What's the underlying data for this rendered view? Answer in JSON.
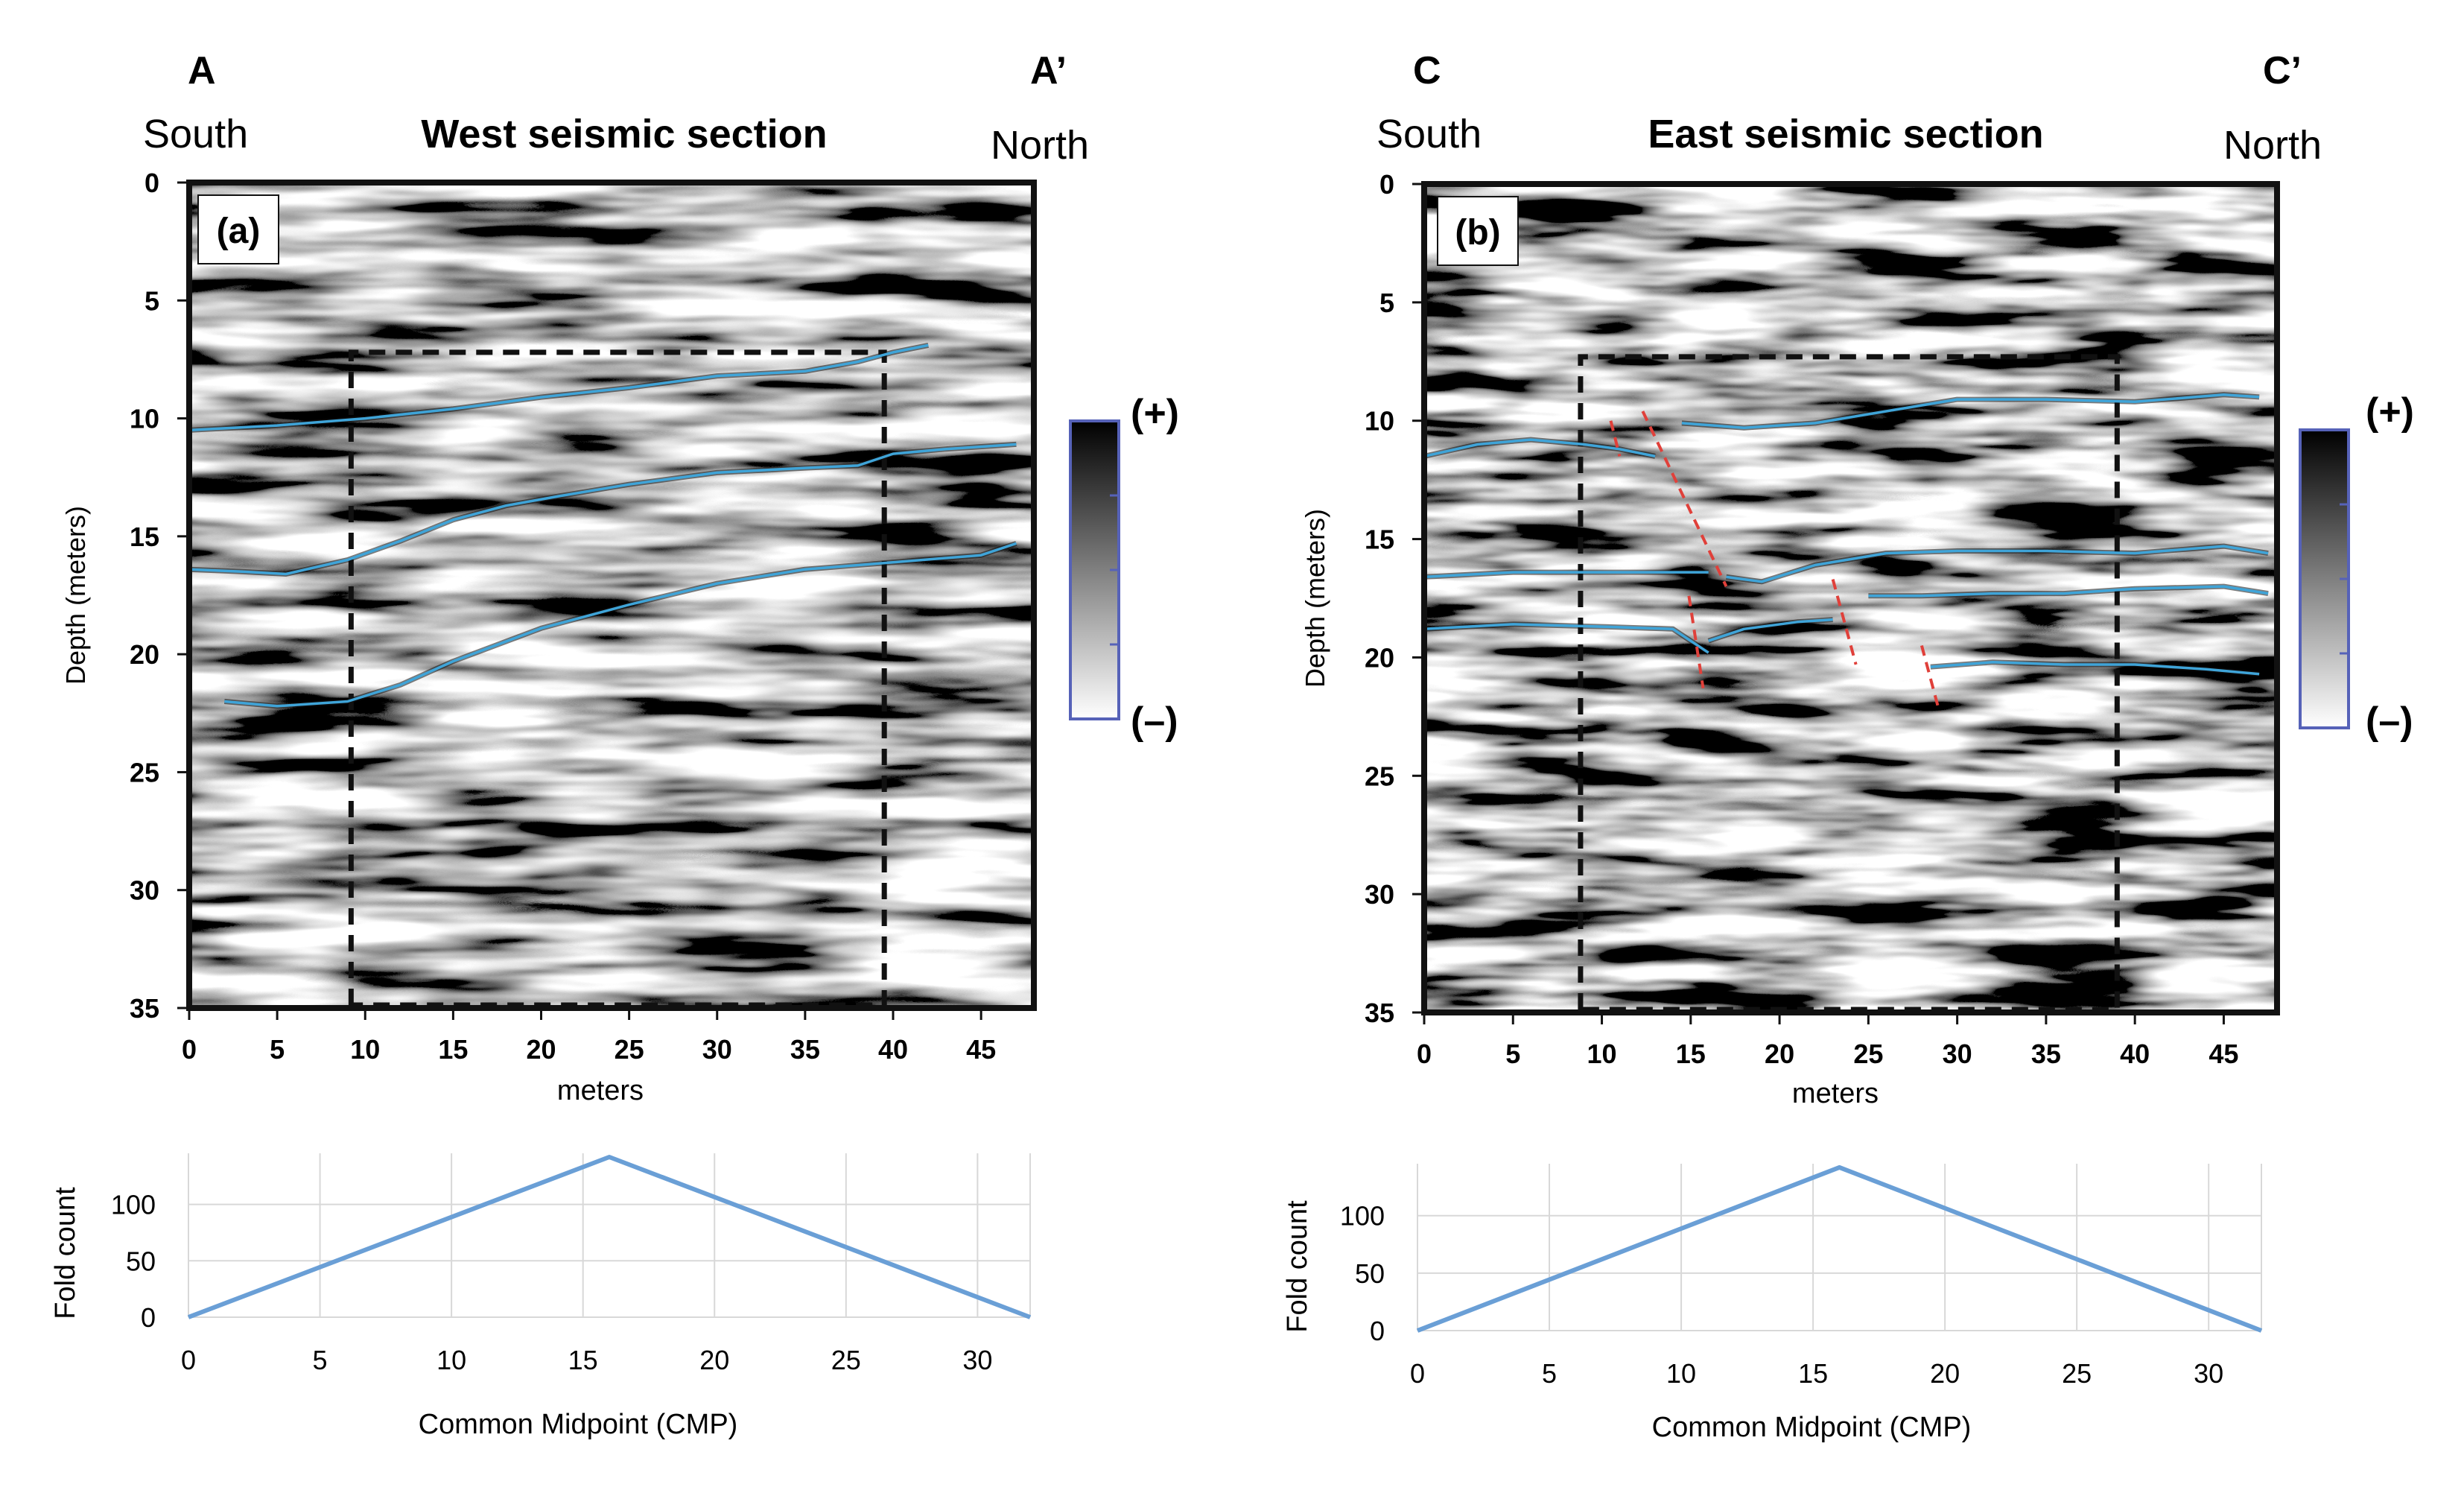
{
  "chart_data": [
    {
      "type": "heatmap",
      "panel_label": "(a)",
      "title": "West seismic section",
      "start_letter": "A",
      "end_letter": "A’",
      "start_direction": "South",
      "end_direction": "North",
      "xlabel": "meters",
      "ylabel": "Depth (meters)",
      "xlim": [
        0,
        48
      ],
      "ylim": [
        35,
        0
      ],
      "xticks": [
        0,
        5,
        10,
        15,
        20,
        25,
        30,
        35,
        40,
        45
      ],
      "yticks": [
        0,
        5,
        10,
        15,
        20,
        25,
        30,
        35
      ],
      "colorbar_labels": [
        "(+)",
        "(–)"
      ],
      "box": {
        "x": [
          9.2,
          39.5
        ],
        "y": [
          7.2,
          35
        ]
      },
      "horizons": [
        {
          "name": "horizon-1",
          "x": [
            0,
            5,
            10,
            15,
            20,
            25,
            30,
            35,
            38,
            40,
            42
          ],
          "depth": [
            10.5,
            10.3,
            10.0,
            9.6,
            9.1,
            8.7,
            8.2,
            8.0,
            7.6,
            7.2,
            6.9
          ]
        },
        {
          "name": "horizon-2",
          "x": [
            0,
            3,
            5.5,
            9,
            12,
            15,
            18,
            21,
            25,
            30,
            35,
            38,
            40,
            43,
            47
          ],
          "depth": [
            16.4,
            16.5,
            16.6,
            16.0,
            15.2,
            14.3,
            13.7,
            13.3,
            12.8,
            12.3,
            12.1,
            12.0,
            11.5,
            11.3,
            11.1
          ]
        },
        {
          "name": "horizon-3",
          "x": [
            2,
            5,
            9,
            12,
            15,
            20,
            25,
            30,
            35,
            40,
            45,
            47
          ],
          "depth": [
            22.0,
            22.2,
            22.0,
            21.3,
            20.3,
            18.9,
            17.9,
            17.0,
            16.4,
            16.1,
            15.8,
            15.3
          ]
        }
      ],
      "faults": []
    },
    {
      "type": "heatmap",
      "panel_label": "(b)",
      "title": "East seismic section",
      "start_letter": "C",
      "end_letter": "C’",
      "start_direction": "South",
      "end_direction": "North",
      "xlabel": "meters",
      "ylabel": "Depth (meters)",
      "xlim": [
        0,
        48
      ],
      "ylim": [
        35,
        0
      ],
      "xticks": [
        0,
        5,
        10,
        15,
        20,
        25,
        30,
        35,
        40,
        45
      ],
      "yticks": [
        0,
        5,
        10,
        15,
        20,
        25,
        30,
        35
      ],
      "colorbar_labels": [
        "(+)",
        "(–)"
      ],
      "box": {
        "x": [
          8.8,
          39.0
        ],
        "y": [
          7.3,
          35
        ]
      },
      "horizons": [
        {
          "name": "horizon-1a",
          "x": [
            0,
            3,
            6,
            9,
            11,
            13
          ],
          "depth": [
            11.5,
            11.0,
            10.8,
            11.0,
            11.2,
            11.5
          ]
        },
        {
          "name": "horizon-1b",
          "x": [
            14.5,
            18,
            22,
            26,
            30,
            35,
            40,
            45,
            47
          ],
          "depth": [
            10.1,
            10.3,
            10.1,
            9.6,
            9.1,
            9.1,
            9.2,
            8.9,
            9.0
          ]
        },
        {
          "name": "horizon-2a",
          "x": [
            0,
            5,
            10,
            16
          ],
          "depth": [
            16.6,
            16.4,
            16.4,
            16.4
          ]
        },
        {
          "name": "horizon-2b",
          "x": [
            17,
            19,
            22,
            26,
            30,
            35,
            40,
            45,
            47.5
          ],
          "depth": [
            16.6,
            16.8,
            16.1,
            15.6,
            15.5,
            15.5,
            15.6,
            15.3,
            15.6
          ]
        },
        {
          "name": "horizon-3a",
          "x": [
            0,
            5,
            10,
            14,
            16
          ],
          "depth": [
            18.8,
            18.6,
            18.7,
            18.8,
            19.8
          ]
        },
        {
          "name": "horizon-3b",
          "x": [
            16,
            18,
            21,
            23
          ],
          "depth": [
            19.3,
            18.8,
            18.5,
            18.4
          ]
        },
        {
          "name": "horizon-3c",
          "x": [
            25,
            28,
            32,
            36,
            40,
            45,
            47.5
          ],
          "depth": [
            17.4,
            17.4,
            17.3,
            17.3,
            17.1,
            17.0,
            17.3
          ]
        },
        {
          "name": "horizon-4",
          "x": [
            28.5,
            32,
            36,
            40,
            44,
            47
          ],
          "depth": [
            20.4,
            20.2,
            20.3,
            20.3,
            20.5,
            20.7
          ]
        }
      ],
      "faults": [
        {
          "name": "fault-1",
          "x": [
            10.5,
            11.0
          ],
          "depth": [
            10.0,
            11.5
          ]
        },
        {
          "name": "fault-2",
          "x": [
            12.3,
            17.0
          ],
          "depth": [
            9.6,
            17.0
          ]
        },
        {
          "name": "fault-3",
          "x": [
            14.9,
            15.7
          ],
          "depth": [
            17.4,
            21.3
          ]
        },
        {
          "name": "fault-4",
          "x": [
            23.0,
            24.3
          ],
          "depth": [
            16.7,
            20.3
          ]
        },
        {
          "name": "fault-5",
          "x": [
            28.0,
            29.0
          ],
          "depth": [
            19.5,
            22.3
          ]
        }
      ]
    },
    {
      "type": "line",
      "title": "",
      "xlabel": "Common Midpoint (CMP)",
      "ylabel": "Fold count",
      "xlim": [
        0,
        32
      ],
      "ylim": [
        0,
        140
      ],
      "xticks": [
        0,
        5,
        10,
        15,
        20,
        25,
        30
      ],
      "yticks": [
        0,
        50,
        100
      ],
      "grid": true,
      "series": [
        {
          "name": "fold",
          "x": [
            0,
            16,
            32
          ],
          "values": [
            0,
            142,
            0
          ]
        }
      ]
    },
    {
      "type": "line",
      "title": "",
      "xlabel": "Common Midpoint (CMP)",
      "ylabel": "Fold count",
      "xlim": [
        0,
        32
      ],
      "ylim": [
        0,
        140
      ],
      "xticks": [
        0,
        5,
        10,
        15,
        20,
        25,
        30
      ],
      "yticks": [
        0,
        50,
        100
      ],
      "grid": true,
      "series": [
        {
          "name": "fold",
          "x": [
            0,
            16,
            32
          ],
          "values": [
            0,
            142,
            0
          ]
        }
      ]
    }
  ],
  "colors": {
    "horizon": "#3fa4d8",
    "fault": "#e0403a",
    "fold_line": "#6a9fd6",
    "grid": "#d8d8d8",
    "frame": "#111111",
    "colorbar_frame": "#5662b8"
  }
}
